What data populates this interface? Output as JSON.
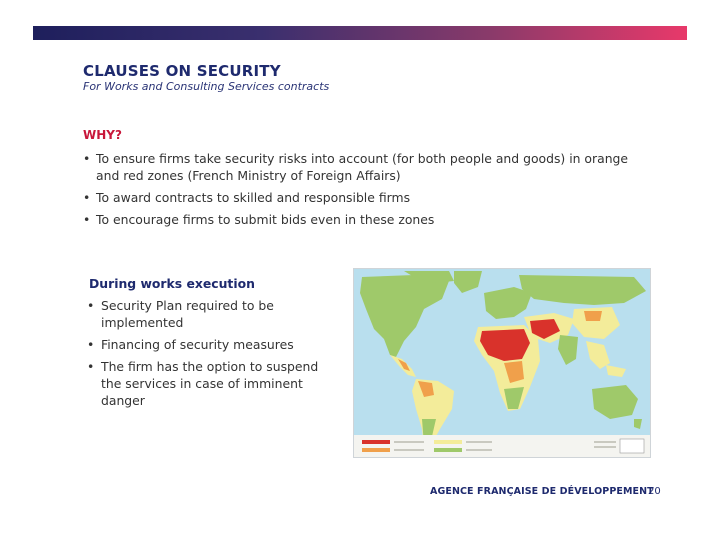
{
  "header": {
    "title": "CLAUSES ON SECURITY",
    "subtitle": "For Works and Consulting Services contracts"
  },
  "why": {
    "heading": "WHY?",
    "bullets": [
      "To ensure firms take security risks into account (for both people and goods) in orange and red zones (French Ministry of Foreign Affairs)",
      "To award contracts to skilled and responsible firms",
      "To encourage firms to submit bids even in these zones"
    ]
  },
  "works": {
    "heading": "During works execution",
    "bullets": [
      "Security Plan required to be implemented",
      "Financing of security measures",
      "The firm has the option to suspend the services in case of imminent danger"
    ]
  },
  "map": {
    "icon": "world-security-map",
    "colors": {
      "ocean": "#b9dfee",
      "green": "#9fc96a",
      "yellow": "#f3ec9a",
      "orange": "#f0a04b",
      "red": "#d9322b"
    }
  },
  "footer": {
    "brand": "AGENCE FRANÇAISE DE DÉVELOPPEMENT",
    "page_number": "20"
  }
}
